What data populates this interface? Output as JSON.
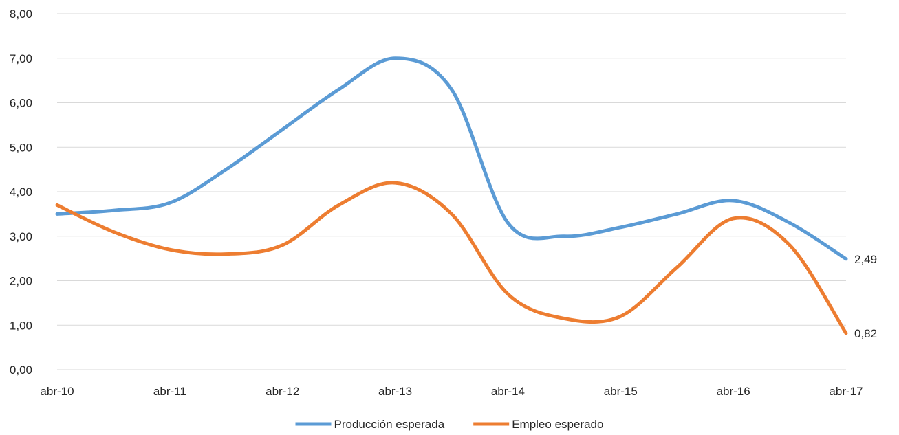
{
  "chart_data": {
    "type": "line",
    "title": "",
    "xlabel": "",
    "ylabel": "",
    "x": [
      "abr-10",
      "abr-10",
      "abr-11",
      "abr-11",
      "abr-12",
      "abr-12",
      "abr-13",
      "abr-13",
      "abr-14",
      "abr-14",
      "abr-15",
      "abr-15",
      "abr-16",
      "abr-16",
      "abr-17"
    ],
    "x_ticks": [
      "abr-10",
      "abr-11",
      "abr-12",
      "abr-13",
      "abr-14",
      "abr-15",
      "abr-16",
      "abr-17"
    ],
    "y_ticks": [
      "0,00",
      "1,00",
      "2,00",
      "3,00",
      "4,00",
      "5,00",
      "6,00",
      "7,00",
      "8,00"
    ],
    "ylim": [
      0,
      8
    ],
    "grid": true,
    "legend_position": "bottom",
    "series": [
      {
        "name": "Producción esperada",
        "color": "#5b9bd5",
        "values": [
          3.5,
          3.58,
          3.75,
          4.5,
          5.4,
          6.3,
          7.0,
          6.3,
          3.3,
          3.0,
          3.2,
          3.5,
          3.8,
          3.3,
          2.49
        ],
        "end_label": "2,49"
      },
      {
        "name": "Empleo esperado",
        "color": "#ed7d31",
        "values": [
          3.7,
          3.1,
          2.7,
          2.6,
          2.8,
          3.7,
          4.2,
          3.5,
          1.7,
          1.15,
          1.2,
          2.3,
          3.4,
          2.8,
          0.82
        ],
        "end_label": "0,82"
      }
    ]
  }
}
